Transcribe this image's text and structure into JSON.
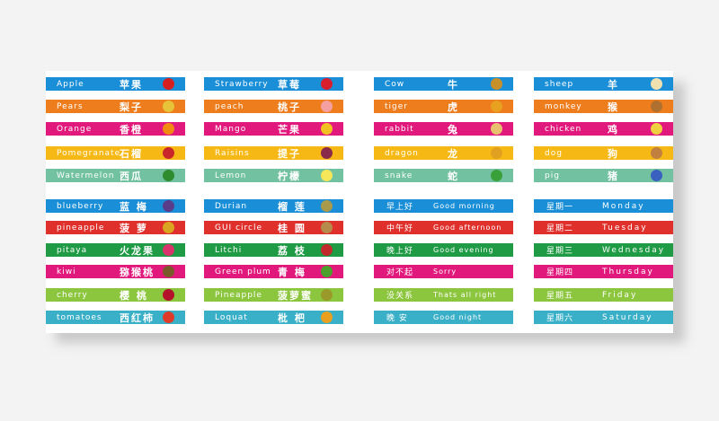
{
  "columns": [
    {
      "id": "fruits1",
      "kind": "word",
      "items": [
        {
          "en": "Apple",
          "zh": "苹果",
          "color": "#1a8fd8",
          "icon": "apple-icon",
          "icon_color": "#d62020"
        },
        {
          "en": "Pears",
          "zh": "梨子",
          "color": "#ee7d1e",
          "icon": "pear-icon",
          "icon_color": "#e7c33a"
        },
        {
          "en": "Orange",
          "zh": "香橙",
          "color": "#e2197c",
          "icon": "orange-icon",
          "icon_color": "#f28a12"
        },
        {
          "en": "Pomegranate",
          "zh": "石榴",
          "color": "#f6b814",
          "icon": "pomegranate-icon",
          "icon_color": "#c8262a"
        },
        {
          "en": "Watermelon",
          "zh": "西瓜",
          "color": "#72c2a2",
          "icon": "watermelon-icon",
          "icon_color": "#2e8b2e"
        },
        {
          "en": "blueberry",
          "zh": "蓝 梅",
          "color": "#1a8fd8",
          "icon": "blueberry-icon",
          "icon_color": "#5a3d8a"
        },
        {
          "en": "pineapple",
          "zh": "菠 萝",
          "color": "#e0302c",
          "icon": "pineapple-icon",
          "icon_color": "#d9a520"
        },
        {
          "en": "pitaya",
          "zh": "火龙果",
          "color": "#1f9a45",
          "icon": "pitaya-icon",
          "icon_color": "#d8336b"
        },
        {
          "en": "kiwi",
          "zh": "猕猴桃",
          "color": "#e2197c",
          "icon": "kiwi-icon",
          "icon_color": "#7a5a2a"
        },
        {
          "en": "cherry",
          "zh": "樱 桃",
          "color": "#8cc63e",
          "icon": "cherry-icon",
          "icon_color": "#b3122a"
        },
        {
          "en": "tomatoes",
          "zh": "西红柿",
          "color": "#3ab0c8",
          "icon": "tomato-icon",
          "icon_color": "#e03a2a"
        }
      ]
    },
    {
      "id": "fruits2",
      "kind": "word",
      "items": [
        {
          "en": "Strawberry",
          "zh": "草莓",
          "color": "#1a8fd8",
          "icon": "strawberry-icon",
          "icon_color": "#d91e2e"
        },
        {
          "en": "peach",
          "zh": "桃子",
          "color": "#ee7d1e",
          "icon": "peach-icon",
          "icon_color": "#f4a0a0"
        },
        {
          "en": "Mango",
          "zh": "芒果",
          "color": "#e2197c",
          "icon": "mango-icon",
          "icon_color": "#f3c022"
        },
        {
          "en": "Raisins",
          "zh": "提子",
          "color": "#f6b814",
          "icon": "raisins-icon",
          "icon_color": "#8a2a4a"
        },
        {
          "en": "Lemon",
          "zh": "柠檬",
          "color": "#72c2a2",
          "icon": "lemon-icon",
          "icon_color": "#f6e65a"
        },
        {
          "en": "Durian",
          "zh": "榴 莲",
          "color": "#1a8fd8",
          "icon": "durian-icon",
          "icon_color": "#a89a4a"
        },
        {
          "en": "GUI circle",
          "zh": "桂 圆",
          "color": "#e0302c",
          "icon": "longan-icon",
          "icon_color": "#b58a4a"
        },
        {
          "en": "Litchi",
          "zh": "荔 枝",
          "color": "#1f9a45",
          "icon": "litchi-icon",
          "icon_color": "#c02a2a"
        },
        {
          "en": "Green plum",
          "zh": "青 梅",
          "color": "#e2197c",
          "icon": "green-plum-icon",
          "icon_color": "#4aa02a"
        },
        {
          "en": "Pineapple",
          "zh": "菠萝蜜",
          "color": "#8cc63e",
          "icon": "jackfruit-icon",
          "icon_color": "#9a9a2a"
        },
        {
          "en": "Loquat",
          "zh": "枇 杷",
          "color": "#3ab0c8",
          "icon": "loquat-icon",
          "icon_color": "#e9a020"
        }
      ]
    },
    {
      "id": "animals1",
      "kind": "word",
      "items": [
        {
          "en": "Cow",
          "zh": "牛",
          "color": "#1a8fd8",
          "icon": "cow-icon",
          "icon_color": "#c8902a"
        },
        {
          "en": "tiger",
          "zh": "虎",
          "color": "#ee7d1e",
          "icon": "tiger-icon",
          "icon_color": "#e8a020"
        },
        {
          "en": "rabbit",
          "zh": "兔",
          "color": "#e2197c",
          "icon": "rabbit-icon",
          "icon_color": "#e8c070"
        },
        {
          "en": "dragon",
          "zh": "龙",
          "color": "#f6b814",
          "icon": "dragon-icon",
          "icon_color": "#e0a020"
        },
        {
          "en": "snake",
          "zh": "蛇",
          "color": "#72c2a2",
          "icon": "snake-icon",
          "icon_color": "#3aa03a"
        }
      ],
      "greetings": [
        {
          "zh": "早上好",
          "en": "Good morning",
          "color": "#1a8fd8"
        },
        {
          "zh": "中午好",
          "en": "Good afternoon",
          "color": "#e0302c"
        },
        {
          "zh": "晚上好",
          "en": "Good evening",
          "color": "#1f9a45"
        },
        {
          "zh": "对不起",
          "en": "Sorry",
          "color": "#e2197c"
        },
        {
          "zh": "没关系",
          "en": "Thats all right",
          "color": "#8cc63e"
        },
        {
          "zh": "晚 安",
          "en": "Good night",
          "color": "#3ab0c8"
        }
      ]
    },
    {
      "id": "animals2",
      "kind": "word",
      "items": [
        {
          "en": "sheep",
          "zh": "羊",
          "color": "#1a8fd8",
          "icon": "sheep-icon",
          "icon_color": "#f0e0b0"
        },
        {
          "en": "monkey",
          "zh": "猴",
          "color": "#ee7d1e",
          "icon": "monkey-icon",
          "icon_color": "#b07030"
        },
        {
          "en": "chicken",
          "zh": "鸡",
          "color": "#e2197c",
          "icon": "chicken-icon",
          "icon_color": "#f0d040"
        },
        {
          "en": "dog",
          "zh": "狗",
          "color": "#f6b814",
          "icon": "dog-icon",
          "icon_color": "#c08040"
        },
        {
          "en": "pig",
          "zh": "猪",
          "color": "#72c2a2",
          "icon": "pig-icon",
          "icon_color": "#3a60c0"
        }
      ],
      "weekdays": [
        {
          "zh": "星期一",
          "en": "Monday",
          "color": "#1a8fd8"
        },
        {
          "zh": "星期二",
          "en": "Tuesday",
          "color": "#e0302c"
        },
        {
          "zh": "星期三",
          "en": "Wednesday",
          "color": "#1f9a45"
        },
        {
          "zh": "星期四",
          "en": "Thursday",
          "color": "#e2197c"
        },
        {
          "zh": "星期五",
          "en": "Friday",
          "color": "#8cc63e"
        },
        {
          "zh": "星期六",
          "en": "Saturday",
          "color": "#3ab0c8"
        }
      ]
    }
  ]
}
